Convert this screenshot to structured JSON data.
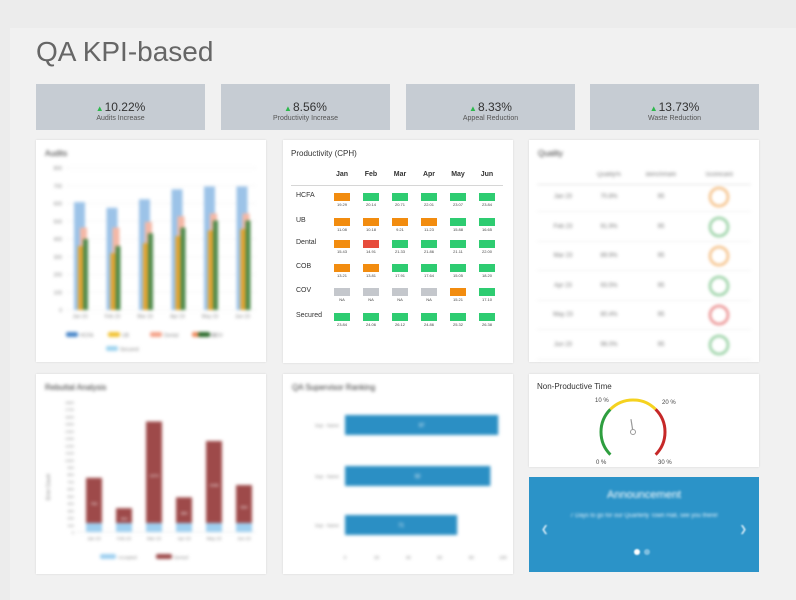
{
  "page": {
    "title": "QA KPI-based"
  },
  "kpis": [
    {
      "value": "10.22%",
      "label": "Audits Increase"
    },
    {
      "value": "8.56%",
      "label": "Productivity Increase"
    },
    {
      "value": "8.33%",
      "label": "Appeal Reduction"
    },
    {
      "value": "13.73%",
      "label": "Waste Reduction"
    }
  ],
  "colors": {
    "orange": "#f28c0f",
    "green": "#2ecc71",
    "red": "#e74c3c",
    "gray": "#c4c7cc",
    "kpi_bg": "#c6ccd3",
    "accent": "#2b93c8",
    "bar_red": "#9e4a4a",
    "bar_blue": "#2b8fc4"
  },
  "audits": {
    "title": "Audits",
    "yticks": [
      "800",
      "700",
      "600",
      "500",
      "400",
      "300",
      "200",
      "100",
      "0"
    ],
    "categories": [
      "Jan 23",
      "Feb 23",
      "Mar 23",
      "Apr 23",
      "May 23",
      "Jun 23"
    ],
    "legend": [
      "HCFA",
      "UB",
      "Dental",
      "COB",
      "COV",
      "Secured"
    ]
  },
  "productivity": {
    "title": "Productivity (CPH)",
    "months": [
      "Jan",
      "Feb",
      "Mar",
      "Apr",
      "May",
      "Jun"
    ],
    "rows": [
      {
        "label": "HCFA",
        "cells": [
          {
            "v": "19.29",
            "c": "orange"
          },
          {
            "v": "20.14",
            "c": "green"
          },
          {
            "v": "20.71",
            "c": "green"
          },
          {
            "v": "22.01",
            "c": "green"
          },
          {
            "v": "23.07",
            "c": "green"
          },
          {
            "v": "23.84",
            "c": "green"
          }
        ]
      },
      {
        "label": "UB",
        "cells": [
          {
            "v": "11.08",
            "c": "orange"
          },
          {
            "v": "10.18",
            "c": "orange"
          },
          {
            "v": "9.21",
            "c": "orange"
          },
          {
            "v": "11.23",
            "c": "orange"
          },
          {
            "v": "15.88",
            "c": "green"
          },
          {
            "v": "16.65",
            "c": "green"
          }
        ]
      },
      {
        "label": "Dental",
        "cells": [
          {
            "v": "15.43",
            "c": "orange"
          },
          {
            "v": "14.91",
            "c": "red"
          },
          {
            "v": "21.33",
            "c": "green"
          },
          {
            "v": "21.86",
            "c": "green"
          },
          {
            "v": "21.11",
            "c": "green"
          },
          {
            "v": "22.00",
            "c": "green"
          }
        ]
      },
      {
        "label": "COB",
        "cells": [
          {
            "v": "13.21",
            "c": "orange"
          },
          {
            "v": "13.81",
            "c": "orange"
          },
          {
            "v": "17.91",
            "c": "green"
          },
          {
            "v": "17.64",
            "c": "green"
          },
          {
            "v": "15.05",
            "c": "green"
          },
          {
            "v": "18.20",
            "c": "green"
          }
        ]
      },
      {
        "label": "COV",
        "cells": [
          {
            "v": "NA",
            "c": "gray"
          },
          {
            "v": "NA",
            "c": "gray"
          },
          {
            "v": "NA",
            "c": "gray"
          },
          {
            "v": "NA",
            "c": "gray"
          },
          {
            "v": "15.21",
            "c": "orange"
          },
          {
            "v": "17.10",
            "c": "green"
          }
        ]
      },
      {
        "label": "Secured",
        "cells": [
          {
            "v": "23.84",
            "c": "green"
          },
          {
            "v": "24.06",
            "c": "green"
          },
          {
            "v": "26.12",
            "c": "green"
          },
          {
            "v": "24.86",
            "c": "green"
          },
          {
            "v": "25.32",
            "c": "green"
          },
          {
            "v": "26.38",
            "c": "green"
          }
        ]
      }
    ]
  },
  "quality": {
    "title": "Quality",
    "headers": [
      "Quality%",
      "Benchmark",
      "Scorecard"
    ],
    "rows": [
      {
        "month": "Jan 23",
        "quality": "70.8%",
        "bench": "95",
        "face": "orange"
      },
      {
        "month": "Feb 23",
        "quality": "91.9%",
        "bench": "95",
        "face": "green"
      },
      {
        "month": "Mar 23",
        "quality": "89.9%",
        "bench": "95",
        "face": "orange"
      },
      {
        "month": "Apr 23",
        "quality": "93.5%",
        "bench": "95",
        "face": "green"
      },
      {
        "month": "May 23",
        "quality": "80.4%",
        "bench": "95",
        "face": "red"
      },
      {
        "month": "Jun 23",
        "quality": "96.0%",
        "bench": "95",
        "face": "green"
      }
    ]
  },
  "rebuttal": {
    "title": "Rebuttal Analysis",
    "ylabel": "Error Count",
    "yticks": [
      "1800",
      "1700",
      "1600",
      "1500",
      "1400",
      "1300",
      "1200",
      "1100",
      "1000",
      "900",
      "800",
      "700",
      "600",
      "500",
      "400",
      "300",
      "200",
      "100",
      "0"
    ],
    "categories": [
      "Jan 23",
      "Feb 23",
      "Mar 23",
      "Apr 23",
      "May 23",
      "Jun 23"
    ],
    "values": [
      750,
      330,
      1530,
      480,
      1260,
      650
    ],
    "labels": [
      "752",
      "303",
      "1373",
      "384",
      "1046",
      "534"
    ],
    "legend": [
      "Accepted",
      "Denied"
    ]
  },
  "supervisor": {
    "title": "QA Supervisor Ranking",
    "names": [
      "Sup - Name",
      "Sup - Name",
      "Sup - Name"
    ],
    "values": [
      97,
      92,
      71
    ],
    "labels": [
      "97",
      "92",
      "71"
    ],
    "xticks": [
      "0",
      "20",
      "40",
      "60",
      "80",
      "100"
    ]
  },
  "npt": {
    "title": "Non-Productive Time",
    "labels": {
      "t0": "0 %",
      "t10": "10 %",
      "t20": "20 %",
      "t30": "30 %"
    },
    "needle_value": 14
  },
  "announcement": {
    "title": "Announcement",
    "text": "7 Days to go for our Quarterly Town Hall, see you there!",
    "prev": "❮",
    "next": "❯"
  }
}
